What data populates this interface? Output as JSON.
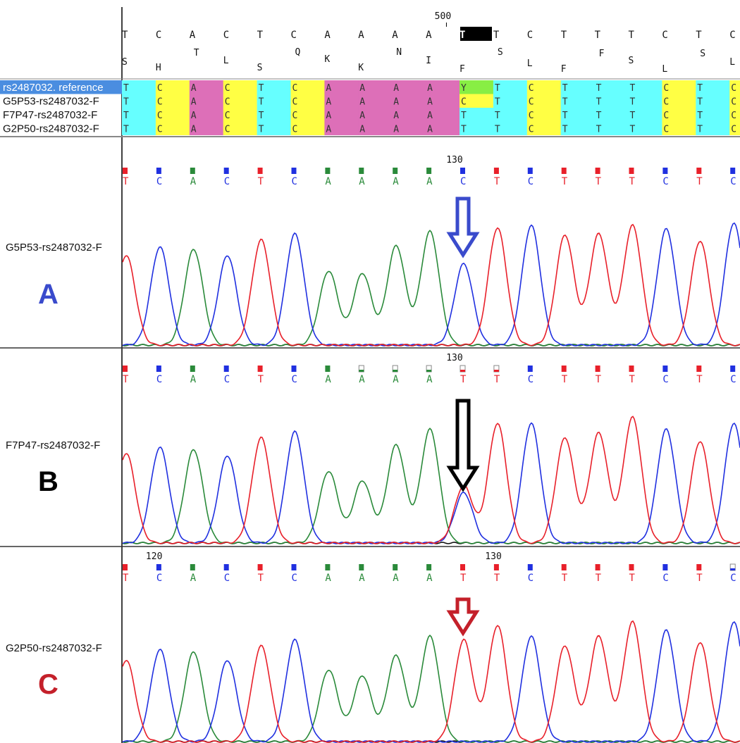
{
  "header": {
    "position_label": "500",
    "reference_bases": [
      "T",
      "C",
      "A",
      "C",
      "T",
      "C",
      "A",
      "A",
      "A",
      "A",
      "T",
      "T",
      "C",
      "T",
      "T",
      "T",
      "C",
      "T",
      "C"
    ],
    "amino_acids": [
      "S",
      "H",
      "T",
      "L",
      "S",
      "Q",
      "K",
      "K",
      "N",
      "I",
      "F",
      "S",
      "L",
      "F",
      "F",
      "S",
      "L",
      "S",
      "L"
    ],
    "highlight_index": 10
  },
  "alignment": {
    "rows": [
      {
        "name": "rs2487032. reference",
        "bases": [
          "T",
          "C",
          "A",
          "C",
          "T",
          "C",
          "A",
          "A",
          "A",
          "A",
          "Y",
          "T",
          "C",
          "T",
          "T",
          "T",
          "C",
          "T",
          "C"
        ],
        "selected": true
      },
      {
        "name": "G5P53-rs2487032-F",
        "bases": [
          "T",
          "C",
          "A",
          "C",
          "T",
          "C",
          "A",
          "A",
          "A",
          "A",
          "C",
          "T",
          "C",
          "T",
          "T",
          "T",
          "C",
          "T",
          "C"
        ],
        "selected": false
      },
      {
        "name": "F7P47-rs2487032-F",
        "bases": [
          "T",
          "C",
          "A",
          "C",
          "T",
          "C",
          "A",
          "A",
          "A",
          "A",
          "T",
          "T",
          "C",
          "T",
          "T",
          "T",
          "C",
          "T",
          "C"
        ],
        "selected": false
      },
      {
        "name": "G2P50-rs2487032-F",
        "bases": [
          "T",
          "C",
          "A",
          "C",
          "T",
          "C",
          "A",
          "A",
          "A",
          "A",
          "T",
          "T",
          "C",
          "T",
          "T",
          "T",
          "C",
          "T",
          "C"
        ],
        "selected": false
      }
    ],
    "colors": {
      "T": "#66ffff",
      "C": "#ffff44",
      "A": "#dd6fb8",
      "Y": "#88ee44"
    }
  },
  "panels": [
    {
      "label": "G5P53-rs2487032-F",
      "letter": "A",
      "letter_color": "#3a4bcc",
      "arrow_color": "#3a4bcc",
      "position_markers": [
        {
          "text": "130",
          "index": 9.65
        }
      ],
      "called_bases": [
        "T",
        "C",
        "A",
        "C",
        "T",
        "C",
        "A",
        "A",
        "A",
        "A",
        "C",
        "T",
        "C",
        "T",
        "T",
        "T",
        "C",
        "T",
        "C"
      ],
      "peak_heights": [
        0.75,
        0.82,
        0.8,
        0.75,
        0.88,
        0.93,
        0.62,
        0.6,
        0.83,
        0.95,
        0.68,
        0.98,
        1.0,
        0.92,
        0.93,
        1.0,
        0.97,
        0.87,
        1.02
      ],
      "secondary_peak": null
    },
    {
      "label": "F7P47-rs2487032-F",
      "letter": "B",
      "letter_color": "#000000",
      "arrow_color": "#000000",
      "position_markers": [
        {
          "text": "130",
          "index": 9.65
        }
      ],
      "called_bases": [
        "T",
        "C",
        "A",
        "C",
        "T",
        "C",
        "A",
        "A",
        "A",
        "A",
        "T",
        "T",
        "C",
        "T",
        "T",
        "T",
        "C",
        "T",
        "C"
      ],
      "peak_heights": [
        0.75,
        0.8,
        0.78,
        0.73,
        0.88,
        0.93,
        0.6,
        0.52,
        0.82,
        0.95,
        0.48,
        1.0,
        1.0,
        0.88,
        0.92,
        1.05,
        0.95,
        0.85,
        1.0
      ],
      "secondary_peak": {
        "index": 10,
        "base": "C",
        "height": 0.42
      }
    },
    {
      "label": "G2P50-rs2487032-F",
      "letter": "C",
      "letter_color": "#c4202a",
      "arrow_color": "#c4202a",
      "position_markers": [
        {
          "text": "120",
          "index": 0.75
        },
        {
          "text": "130",
          "index": 10.8
        }
      ],
      "called_bases": [
        "T",
        "C",
        "A",
        "C",
        "T",
        "C",
        "A",
        "A",
        "A",
        "A",
        "T",
        "T",
        "C",
        "T",
        "T",
        "T",
        "C",
        "T",
        "C"
      ],
      "peak_heights": [
        0.68,
        0.77,
        0.75,
        0.68,
        0.8,
        0.85,
        0.6,
        0.55,
        0.72,
        0.88,
        0.85,
        0.97,
        0.88,
        0.8,
        0.88,
        1.0,
        0.93,
        0.83,
        1.0
      ],
      "secondary_peak": null
    }
  ],
  "trace_colors": {
    "T": "#e8202a",
    "C": "#2030e0",
    "A": "#2a8a3a",
    "G": "#111111"
  }
}
